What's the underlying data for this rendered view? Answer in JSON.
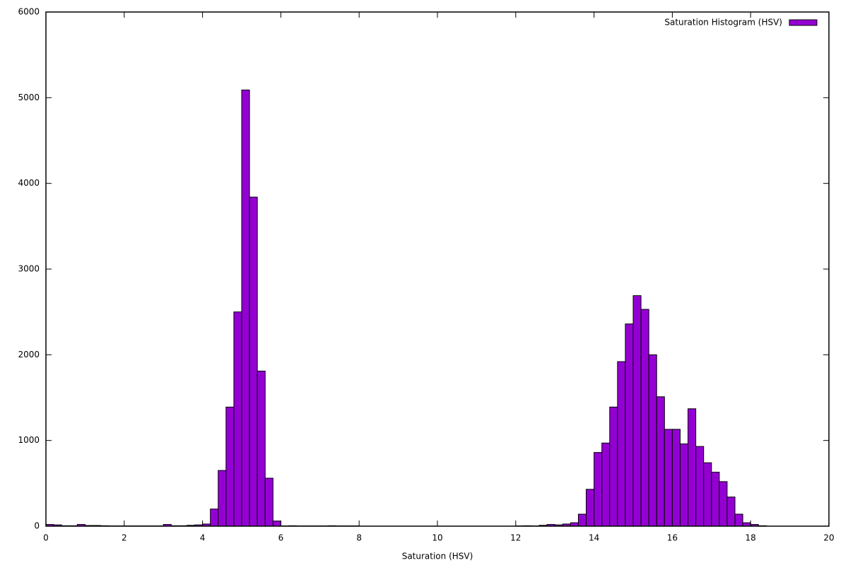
{
  "chart_data": {
    "type": "histogram",
    "xlabel": "Saturation (HSV)",
    "bins": [
      0,
      0.2,
      0.4,
      0.6,
      0.8,
      1,
      1.2,
      1.4,
      1.6,
      1.8,
      2,
      2.2,
      2.4,
      2.6,
      2.8,
      3,
      3.2,
      3.4,
      3.6,
      3.8,
      4,
      4.2,
      4.4,
      4.6,
      4.8,
      5,
      5.2,
      5.4,
      5.6,
      5.8,
      6,
      6.2,
      6.4,
      6.6,
      6.8,
      7,
      7.2,
      7.4,
      7.6,
      7.8,
      8,
      8.2,
      8.4,
      8.6,
      8.8,
      9,
      9.2,
      9.4,
      9.6,
      9.8,
      10,
      10.2,
      10.4,
      10.6,
      10.8,
      11,
      11.2,
      11.4,
      11.6,
      11.8,
      12,
      12.2,
      12.4,
      12.6,
      12.8,
      13,
      13.2,
      13.4,
      13.6,
      13.8,
      14,
      14.2,
      14.4,
      14.6,
      14.8,
      15,
      15.2,
      15.4,
      15.6,
      15.8,
      16,
      16.2,
      16.4,
      16.6,
      16.8,
      17,
      17.2,
      17.4,
      17.6,
      17.8,
      18,
      18.2,
      18.4,
      18.6,
      18.8,
      19,
      19.2,
      19.4,
      19.6,
      19.8,
      20
    ],
    "series": [
      {
        "name": "Saturation Histogram (HSV)",
        "color": "#9400d3",
        "values": [
          20,
          15,
          5,
          5,
          20,
          8,
          8,
          5,
          3,
          3,
          3,
          3,
          3,
          3,
          3,
          20,
          5,
          5,
          10,
          15,
          25,
          200,
          650,
          1390,
          2500,
          5090,
          3840,
          1810,
          560,
          60,
          3,
          5,
          3,
          3,
          3,
          3,
          5,
          3,
          3,
          3,
          0,
          0,
          0,
          0,
          0,
          0,
          0,
          0,
          0,
          0,
          0,
          0,
          0,
          0,
          0,
          0,
          0,
          0,
          0,
          0,
          3,
          5,
          3,
          10,
          20,
          15,
          25,
          40,
          140,
          430,
          860,
          970,
          1390,
          1920,
          2360,
          2690,
          2530,
          2000,
          1510,
          1130,
          1130,
          960,
          1370,
          930,
          740,
          630,
          520,
          340,
          140,
          40,
          20,
          5,
          0,
          0,
          0,
          0,
          0,
          0,
          0,
          0
        ]
      }
    ],
    "xlim": [
      0,
      20
    ],
    "xticks": [
      0,
      2,
      4,
      6,
      8,
      10,
      12,
      14,
      16,
      18,
      20
    ],
    "ylim": [
      0,
      6000
    ],
    "yticks": [
      0,
      1000,
      2000,
      3000,
      4000,
      5000,
      6000
    ],
    "legend": "top-right"
  }
}
